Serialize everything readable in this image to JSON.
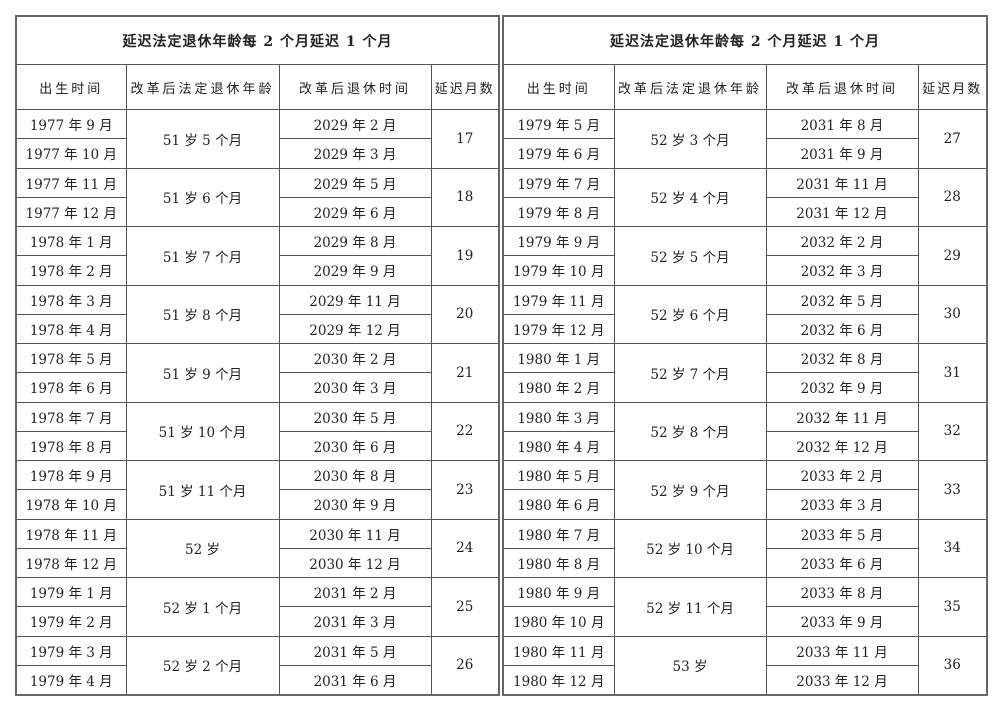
{
  "left": {
    "title": "延迟法定退休年龄每 2 个月延迟 1 个月",
    "headers": [
      "出生时间",
      "改革后法定退休年龄",
      "改革后退休时间",
      "延迟月数"
    ],
    "groups": [
      {
        "birth": [
          "1977 年 9 月",
          "1977 年 10 月"
        ],
        "age": "51 岁 5 个月",
        "retire": [
          "2029 年 2 月",
          "2029 年 3 月"
        ],
        "delay": "17"
      },
      {
        "birth": [
          "1977 年 11 月",
          "1977 年 12 月"
        ],
        "age": "51 岁 6 个月",
        "retire": [
          "2029 年 5 月",
          "2029 年 6 月"
        ],
        "delay": "18"
      },
      {
        "birth": [
          "1978 年 1 月",
          "1978 年 2 月"
        ],
        "age": "51 岁 7 个月",
        "retire": [
          "2029 年 8 月",
          "2029 年 9 月"
        ],
        "delay": "19"
      },
      {
        "birth": [
          "1978 年 3 月",
          "1978 年 4 月"
        ],
        "age": "51 岁 8 个月",
        "retire": [
          "2029 年 11 月",
          "2029 年 12 月"
        ],
        "delay": "20"
      },
      {
        "birth": [
          "1978 年 5 月",
          "1978 年 6 月"
        ],
        "age": "51 岁 9 个月",
        "retire": [
          "2030 年 2 月",
          "2030 年 3 月"
        ],
        "delay": "21"
      },
      {
        "birth": [
          "1978 年 7 月",
          "1978 年 8 月"
        ],
        "age": "51 岁 10 个月",
        "retire": [
          "2030 年 5 月",
          "2030 年 6 月"
        ],
        "delay": "22"
      },
      {
        "birth": [
          "1978 年 9 月",
          "1978 年 10 月"
        ],
        "age": "51 岁 11 个月",
        "retire": [
          "2030 年 8 月",
          "2030 年 9 月"
        ],
        "delay": "23"
      },
      {
        "birth": [
          "1978 年 11 月",
          "1978 年 12 月"
        ],
        "age": "52 岁",
        "retire": [
          "2030 年 11 月",
          "2030 年 12 月"
        ],
        "delay": "24"
      },
      {
        "birth": [
          "1979 年 1 月",
          "1979 年 2 月"
        ],
        "age": "52 岁 1 个月",
        "retire": [
          "2031 年 2 月",
          "2031 年 3 月"
        ],
        "delay": "25"
      },
      {
        "birth": [
          "1979 年 3 月",
          "1979 年 4 月"
        ],
        "age": "52 岁 2 个月",
        "retire": [
          "2031 年 5 月",
          "2031 年 6 月"
        ],
        "delay": "26"
      }
    ]
  },
  "right": {
    "title": "延迟法定退休年龄每 2 个月延迟 1 个月",
    "headers": [
      "出生时间",
      "改革后法定退休年龄",
      "改革后退休时间",
      "延迟月数"
    ],
    "groups": [
      {
        "birth": [
          "1979 年 5 月",
          "1979 年 6 月"
        ],
        "age": "52 岁 3 个月",
        "retire": [
          "2031 年 8 月",
          "2031 年 9 月"
        ],
        "delay": "27"
      },
      {
        "birth": [
          "1979 年 7 月",
          "1979 年 8 月"
        ],
        "age": "52 岁 4 个月",
        "retire": [
          "2031 年 11 月",
          "2031 年 12 月"
        ],
        "delay": "28"
      },
      {
        "birth": [
          "1979 年 9 月",
          "1979 年 10 月"
        ],
        "age": "52 岁 5 个月",
        "retire": [
          "2032 年 2 月",
          "2032 年 3 月"
        ],
        "delay": "29"
      },
      {
        "birth": [
          "1979 年 11 月",
          "1979 年 12 月"
        ],
        "age": "52 岁 6 个月",
        "retire": [
          "2032 年 5 月",
          "2032 年 6 月"
        ],
        "delay": "30"
      },
      {
        "birth": [
          "1980 年 1 月",
          "1980 年 2 月"
        ],
        "age": "52 岁 7 个月",
        "retire": [
          "2032 年 8 月",
          "2032 年 9 月"
        ],
        "delay": "31"
      },
      {
        "birth": [
          "1980 年 3 月",
          "1980 年 4 月"
        ],
        "age": "52 岁 8 个月",
        "retire": [
          "2032 年 11 月",
          "2032 年 12 月"
        ],
        "delay": "32"
      },
      {
        "birth": [
          "1980 年 5 月",
          "1980 年 6 月"
        ],
        "age": "52 岁 9 个月",
        "retire": [
          "2033 年 2 月",
          "2033 年 3 月"
        ],
        "delay": "33"
      },
      {
        "birth": [
          "1980 年 7 月",
          "1980 年 8 月"
        ],
        "age": "52 岁 10 个月",
        "retire": [
          "2033 年 5 月",
          "2033 年 6 月"
        ],
        "delay": "34"
      },
      {
        "birth": [
          "1980 年 9 月",
          "1980 年 10 月"
        ],
        "age": "52 岁 11 个月",
        "retire": [
          "2033 年 8 月",
          "2033 年 9 月"
        ],
        "delay": "35"
      },
      {
        "birth": [
          "1980 年 11 月",
          "1980 年 12 月"
        ],
        "age": "53 岁",
        "retire": [
          "2033 年 11 月",
          "2033 年 12 月"
        ],
        "delay": "36"
      }
    ]
  }
}
